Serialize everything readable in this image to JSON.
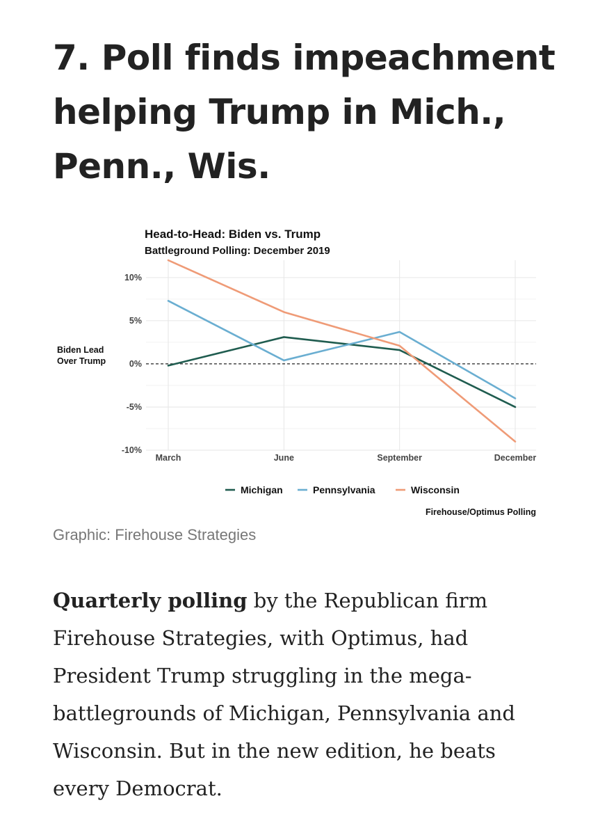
{
  "article": {
    "headline": "7. Poll finds impeachment helping Trump in Mich., Penn., Wis.",
    "caption": "Graphic: Firehouse Strategies",
    "body_bold": "Quarterly polling",
    "body_rest": " by the Republican firm Firehouse Strategies, with Optimus, had President Trump struggling in the mega-battlegrounds of Michigan, Pennsylvania and Wisconsin. But in the new edition, he beats every Democrat."
  },
  "chart_data": {
    "type": "line",
    "title": "Head-to-Head: Biden vs. Trump",
    "subtitle": "Battleground Polling: December 2019",
    "ylabel_line1": "Biden Lead",
    "ylabel_line2": "Over Trump",
    "xlabel": "",
    "categories": [
      "March",
      "June",
      "September",
      "December"
    ],
    "ylim": [
      -10,
      12
    ],
    "yticks": [
      -10,
      -5,
      0,
      5,
      10
    ],
    "ytick_labels": [
      "-10%",
      "-5%",
      "0%",
      "5%",
      "10%"
    ],
    "reference_line": 0,
    "series": [
      {
        "name": "Michigan",
        "color": "#1f5c4f",
        "values": [
          -0.2,
          3.1,
          1.6,
          -5
        ]
      },
      {
        "name": "Pennsylvania",
        "color": "#6aaed1",
        "values": [
          7.3,
          0.4,
          3.7,
          -4
        ]
      },
      {
        "name": "Wisconsin",
        "color": "#ef9b77",
        "values": [
          12,
          6,
          2.1,
          -9
        ]
      }
    ],
    "legend_position": "bottom",
    "source": "Firehouse/Optimus Polling"
  }
}
